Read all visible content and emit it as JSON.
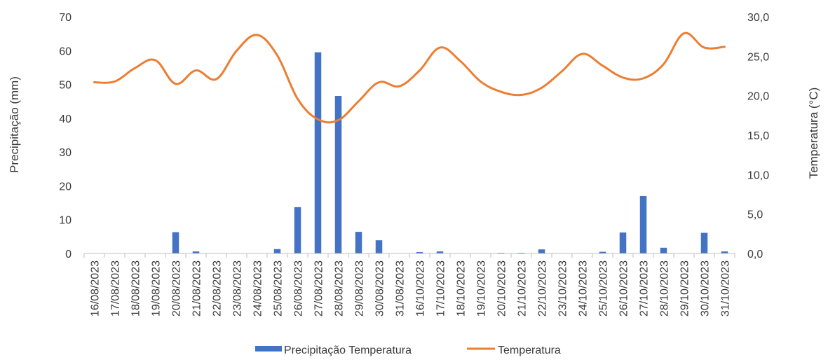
{
  "chart_data": {
    "type": "bar+line",
    "title": "",
    "categories": [
      "16/08/2023",
      "17/08/2023",
      "18/08/2023",
      "19/08/2023",
      "20/08/2023",
      "21/08/2023",
      "22/08/2023",
      "23/08/2023",
      "24/08/2023",
      "25/08/2023",
      "26/08/2023",
      "27/08/2023",
      "28/08/2023",
      "29/08/2023",
      "30/08/2023",
      "31/08/2023",
      "16/10/2023",
      "17/10/2023",
      "18/10/2023",
      "19/10/2023",
      "20/10/2023",
      "21/10/2023",
      "22/10/2023",
      "23/10/2023",
      "24/10/2023",
      "25/10/2023",
      "26/10/2023",
      "27/10/2023",
      "28/10/2023",
      "29/10/2023",
      "30/10/2023",
      "31/10/2023"
    ],
    "series": [
      {
        "name": "Precipitação Temperatura",
        "type": "bar",
        "axis": "left",
        "color": "#4472C4",
        "values": [
          0,
          0,
          0,
          0,
          6.3,
          0.6,
          0,
          0,
          0,
          1.3,
          13.7,
          59.5,
          46.6,
          6.4,
          3.9,
          0,
          0.4,
          0.6,
          0,
          0,
          0.2,
          0.2,
          1.2,
          0,
          0,
          0.5,
          6.2,
          17.0,
          1.7,
          0,
          6.1,
          0.6
        ]
      },
      {
        "name": "Temperatura",
        "type": "line",
        "axis": "right",
        "color": "#ED7D31",
        "values": [
          21.7,
          21.8,
          23.5,
          24.5,
          21.5,
          23.2,
          22.1,
          25.7,
          27.7,
          25.1,
          19.6,
          17.0,
          16.9,
          19.3,
          21.7,
          21.2,
          23.2,
          26.1,
          24.4,
          21.8,
          20.5,
          20.1,
          21.0,
          23.1,
          25.3,
          23.8,
          22.3,
          22.2,
          24.0,
          27.9,
          26.1,
          26.2
        ]
      }
    ],
    "y_left": {
      "label": "Precipitação (mm)",
      "ylim": [
        0,
        70
      ],
      "ticks": [
        "0",
        "10",
        "20",
        "30",
        "40",
        "50",
        "60",
        "70"
      ]
    },
    "y_right": {
      "label": "Temperatura (°C)",
      "ylim": [
        0,
        30
      ],
      "ticks": [
        "0,0",
        "5,0",
        "10,0",
        "15,0",
        "20,0",
        "25,0",
        "30,0"
      ]
    },
    "grid": false,
    "legend": "bottom"
  }
}
